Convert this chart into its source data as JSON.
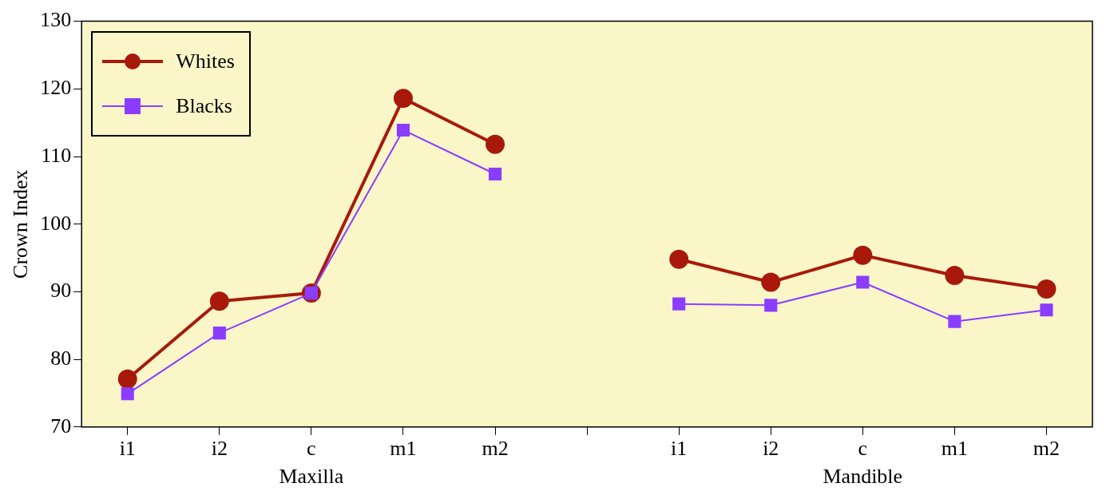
{
  "chart_data": {
    "type": "line",
    "ylabel": "Crown Index",
    "categories": [
      "i1",
      "i2",
      "c",
      "m1",
      "m2",
      null,
      "i1",
      "i2",
      "c",
      "m1",
      "m2"
    ],
    "series": [
      {
        "name": "Whites",
        "color": "#a8190c",
        "marker": "circle",
        "values": [
          77.1,
          88.6,
          89.8,
          118.6,
          111.8,
          null,
          94.8,
          91.4,
          95.4,
          92.4,
          90.4
        ]
      },
      {
        "name": "Blacks",
        "color": "#8a3dff",
        "marker": "square",
        "values": [
          74.9,
          83.9,
          89.8,
          113.9,
          107.4,
          null,
          88.2,
          88.0,
          91.4,
          85.6,
          87.3
        ]
      }
    ],
    "ylim": [
      70,
      130
    ],
    "yticks": [
      70,
      80,
      90,
      100,
      110,
      120,
      130
    ],
    "grid": false,
    "legend": "top left",
    "annotations": [
      "Maxilla",
      "Mandible"
    ]
  }
}
